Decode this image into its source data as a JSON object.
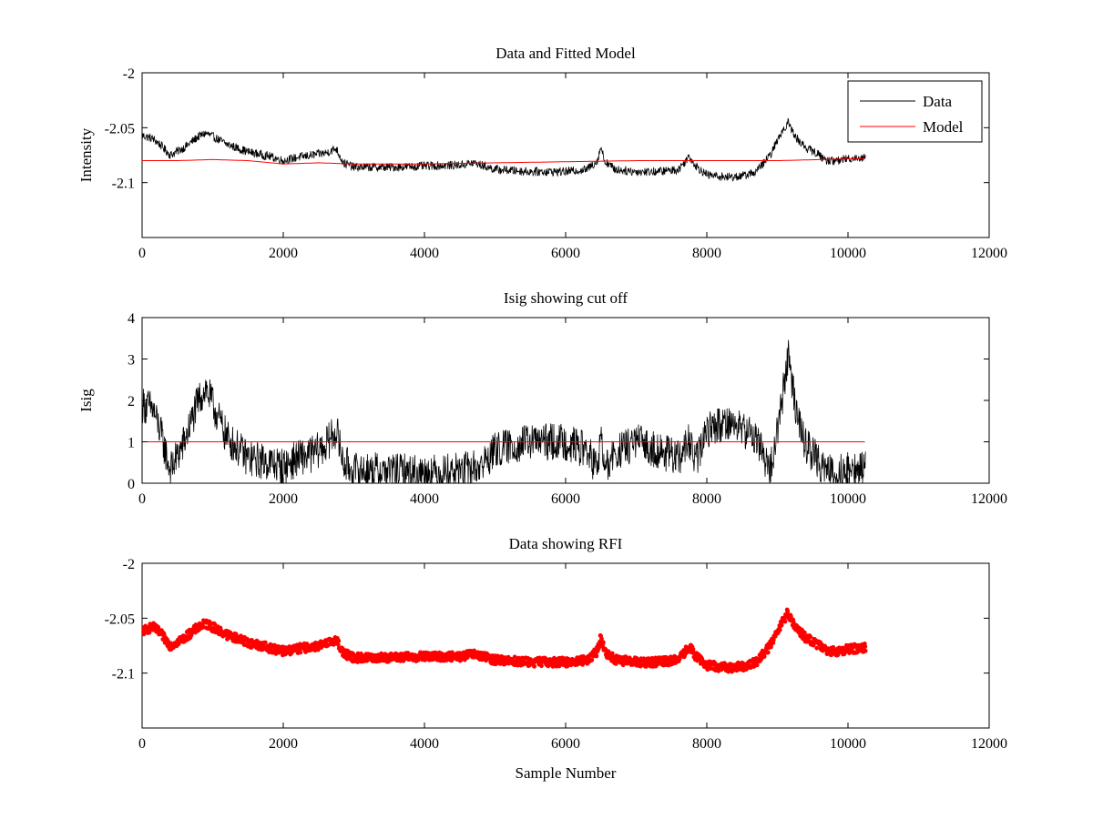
{
  "chart_data": [
    {
      "type": "line",
      "title": "Data and Fitted Model",
      "xlabel": "",
      "ylabel": "Intensity",
      "xlim": [
        0,
        12000
      ],
      "ylim": [
        -2.15,
        -2.0
      ],
      "xticks": [
        0,
        2000,
        4000,
        6000,
        8000,
        10000,
        12000
      ],
      "xtick_labels": [
        "0",
        "2000",
        "4000",
        "6000",
        "8000",
        "10000",
        "12000"
      ],
      "yticks": [
        -2.1,
        -2.05,
        -2.0
      ],
      "ytick_labels": [
        "-2.1",
        "-2.05",
        "-2"
      ],
      "grid": false,
      "legend": {
        "position": "top-right",
        "entries": [
          "Data",
          "Model"
        ]
      },
      "series": [
        {
          "name": "Data",
          "color": "#000000",
          "style": "line",
          "noise": 0.004,
          "x": [
            0,
            150,
            250,
            400,
            600,
            800,
            900,
            1000,
            1200,
            1500,
            1800,
            2000,
            2200,
            2400,
            2600,
            2750,
            2850,
            3000,
            3500,
            4000,
            4500,
            4700,
            5000,
            5500,
            6000,
            6300,
            6450,
            6500,
            6550,
            6700,
            7000,
            7300,
            7600,
            7750,
            7850,
            8000,
            8300,
            8500,
            8700,
            8900,
            9050,
            9150,
            9250,
            9400,
            9550,
            9700,
            9850,
            10000,
            10250
          ],
          "y": [
            -2.057,
            -2.06,
            -2.065,
            -2.075,
            -2.068,
            -2.058,
            -2.055,
            -2.058,
            -2.065,
            -2.072,
            -2.076,
            -2.08,
            -2.077,
            -2.075,
            -2.073,
            -2.069,
            -2.082,
            -2.086,
            -2.086,
            -2.085,
            -2.084,
            -2.082,
            -2.088,
            -2.09,
            -2.09,
            -2.088,
            -2.08,
            -2.067,
            -2.08,
            -2.088,
            -2.09,
            -2.09,
            -2.088,
            -2.076,
            -2.085,
            -2.093,
            -2.095,
            -2.094,
            -2.09,
            -2.075,
            -2.055,
            -2.045,
            -2.058,
            -2.068,
            -2.073,
            -2.08,
            -2.08,
            -2.078,
            -2.077
          ]
        },
        {
          "name": "Model",
          "color": "#ff0000",
          "style": "line",
          "noise": 0,
          "x": [
            0,
            500,
            1000,
            1500,
            2000,
            2500,
            3000,
            4000,
            5000,
            6000,
            7000,
            8000,
            9000,
            10250
          ],
          "y": [
            -2.08,
            -2.08,
            -2.079,
            -2.08,
            -2.083,
            -2.082,
            -2.083,
            -2.083,
            -2.082,
            -2.081,
            -2.08,
            -2.08,
            -2.08,
            -2.078
          ]
        }
      ]
    },
    {
      "type": "line",
      "title": "Isig showing cut off",
      "xlabel": "",
      "ylabel": "Isig",
      "xlim": [
        0,
        12000
      ],
      "ylim": [
        0,
        4
      ],
      "xticks": [
        0,
        2000,
        4000,
        6000,
        8000,
        10000,
        12000
      ],
      "xtick_labels": [
        "0",
        "2000",
        "4000",
        "6000",
        "8000",
        "10000",
        "12000"
      ],
      "yticks": [
        0,
        1,
        2,
        3,
        4
      ],
      "ytick_labels": [
        "0",
        "1",
        "2",
        "3",
        "4"
      ],
      "grid": false,
      "series": [
        {
          "color": "#000000",
          "style": "line",
          "noise": 0.45,
          "x": [
            0,
            150,
            250,
            400,
            600,
            800,
            900,
            1000,
            1200,
            1500,
            1800,
            2000,
            2200,
            2400,
            2600,
            2750,
            2850,
            3000,
            3500,
            4000,
            4500,
            4800,
            5000,
            5500,
            6000,
            6300,
            6450,
            6500,
            6550,
            6700,
            7000,
            7300,
            7600,
            7750,
            7850,
            8000,
            8300,
            8500,
            8700,
            8900,
            9050,
            9150,
            9250,
            9400,
            9550,
            9700,
            9850,
            10000,
            10250
          ],
          "y": [
            1.9,
            1.8,
            1.3,
            0.3,
            1.0,
            2.0,
            2.3,
            1.9,
            1.1,
            0.6,
            0.5,
            0.4,
            0.6,
            0.7,
            0.9,
            1.3,
            0.5,
            0.3,
            0.3,
            0.25,
            0.3,
            0.4,
            0.8,
            1.0,
            1.0,
            0.8,
            0.3,
            1.2,
            0.3,
            0.7,
            1.0,
            0.8,
            0.6,
            1.0,
            0.5,
            1.3,
            1.5,
            1.3,
            1.1,
            0.3,
            1.8,
            3.1,
            1.9,
            0.9,
            0.6,
            0.3,
            0.3,
            0.3,
            0.35
          ]
        },
        {
          "color": "#ff0000",
          "style": "line",
          "noise": 0,
          "x": [
            0,
            10250
          ],
          "y": [
            1,
            1
          ]
        }
      ]
    },
    {
      "type": "scatter",
      "title": "Data showing RFI",
      "xlabel": "Sample Number",
      "ylabel": "",
      "xlim": [
        0,
        12000
      ],
      "ylim": [
        -2.15,
        -2.0
      ],
      "xticks": [
        0,
        2000,
        4000,
        6000,
        8000,
        10000,
        12000
      ],
      "xtick_labels": [
        "0",
        "2000",
        "4000",
        "6000",
        "8000",
        "10000",
        "12000"
      ],
      "yticks": [
        -2.1,
        -2.05,
        -2.0
      ],
      "ytick_labels": [
        "-2.1",
        "-2.05",
        "-2"
      ],
      "grid": false,
      "series": [
        {
          "color": "#ff0000",
          "style": "points",
          "noise": 0.004,
          "x": [
            0,
            150,
            250,
            400,
            600,
            800,
            900,
            1000,
            1200,
            1500,
            1800,
            2000,
            2200,
            2400,
            2600,
            2750,
            2850,
            3000,
            3500,
            4000,
            4500,
            4700,
            5000,
            5500,
            6000,
            6300,
            6450,
            6500,
            6550,
            6700,
            7000,
            7300,
            7600,
            7750,
            7850,
            8000,
            8300,
            8500,
            8700,
            8900,
            9050,
            9150,
            9250,
            9400,
            9550,
            9700,
            9850,
            10000,
            10250
          ],
          "y": [
            -2.062,
            -2.058,
            -2.063,
            -2.075,
            -2.068,
            -2.058,
            -2.055,
            -2.058,
            -2.065,
            -2.072,
            -2.077,
            -2.08,
            -2.078,
            -2.076,
            -2.074,
            -2.069,
            -2.082,
            -2.086,
            -2.086,
            -2.085,
            -2.085,
            -2.083,
            -2.088,
            -2.09,
            -2.09,
            -2.088,
            -2.08,
            -2.067,
            -2.08,
            -2.088,
            -2.09,
            -2.09,
            -2.088,
            -2.076,
            -2.085,
            -2.093,
            -2.095,
            -2.094,
            -2.09,
            -2.075,
            -2.055,
            -2.045,
            -2.058,
            -2.068,
            -2.073,
            -2.08,
            -2.08,
            -2.078,
            -2.077
          ]
        }
      ]
    }
  ]
}
